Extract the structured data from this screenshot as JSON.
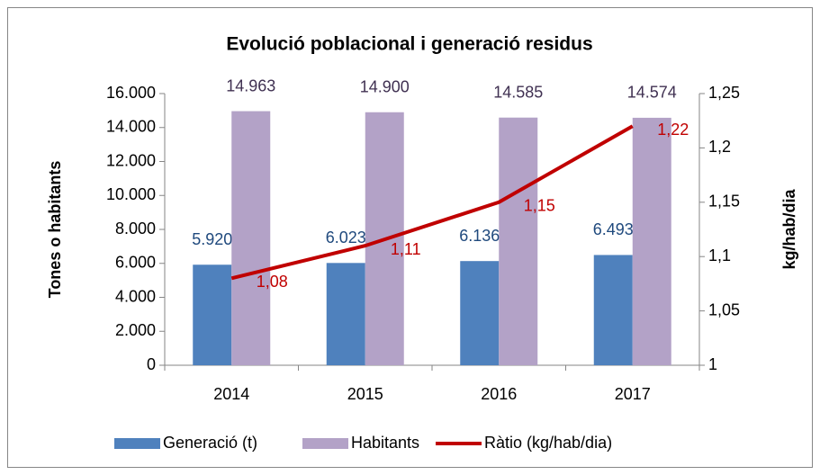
{
  "chart_data": {
    "type": "bar",
    "title": "Evolució poblacional i generació residus",
    "ylabel": "Tones o habitants",
    "y2label": "kg/hab/dia",
    "categories": [
      "2014",
      "2015",
      "2016",
      "2017"
    ],
    "series": [
      {
        "name": "Generació (t)",
        "color": "#4f81bd",
        "label_color": "#1f497d",
        "values": [
          5920,
          6023,
          6136,
          6493
        ],
        "value_labels": [
          "5.920",
          "6.023",
          "6.136",
          "6.493"
        ]
      },
      {
        "name": "Habitants",
        "color": "#b3a2c7",
        "label_color": "#403152",
        "values": [
          14963,
          14900,
          14585,
          14574
        ],
        "value_labels": [
          "14.963",
          "14.900",
          "14.585",
          "14.574"
        ]
      },
      {
        "name": "Ràtio (kg/hab/dia)",
        "type": "line",
        "axis": "y2",
        "color": "#c00000",
        "label_color": "#c00000",
        "values": [
          1.08,
          1.11,
          1.15,
          1.22
        ],
        "value_labels": [
          "1,08",
          "1,11",
          "1,15",
          "1,22"
        ]
      }
    ],
    "ylim": [
      0,
      16000
    ],
    "yticks": [
      0,
      {
        "value": 2000,
        "label": "2.000"
      },
      {
        "value": 4000,
        "label": "4.000"
      },
      {
        "value": 6000,
        "label": "6.000"
      },
      {
        "value": 8000,
        "label": "8.000"
      },
      {
        "value": 10000,
        "label": "10.000"
      },
      {
        "value": 12000,
        "label": "12.000"
      },
      {
        "value": 14000,
        "label": "14.000"
      },
      {
        "value": 16000,
        "label": "16.000"
      }
    ],
    "y2lim": [
      1,
      1.25
    ],
    "y2ticks": [
      1,
      {
        "value": 1.05,
        "label": "1,05"
      },
      {
        "value": 1.1,
        "label": "1,1"
      },
      {
        "value": 1.15,
        "label": "1,15"
      },
      {
        "value": 1.2,
        "label": "1,2"
      },
      {
        "value": 1.25,
        "label": "1,25"
      }
    ],
    "grid": false,
    "legend": "bottom"
  }
}
